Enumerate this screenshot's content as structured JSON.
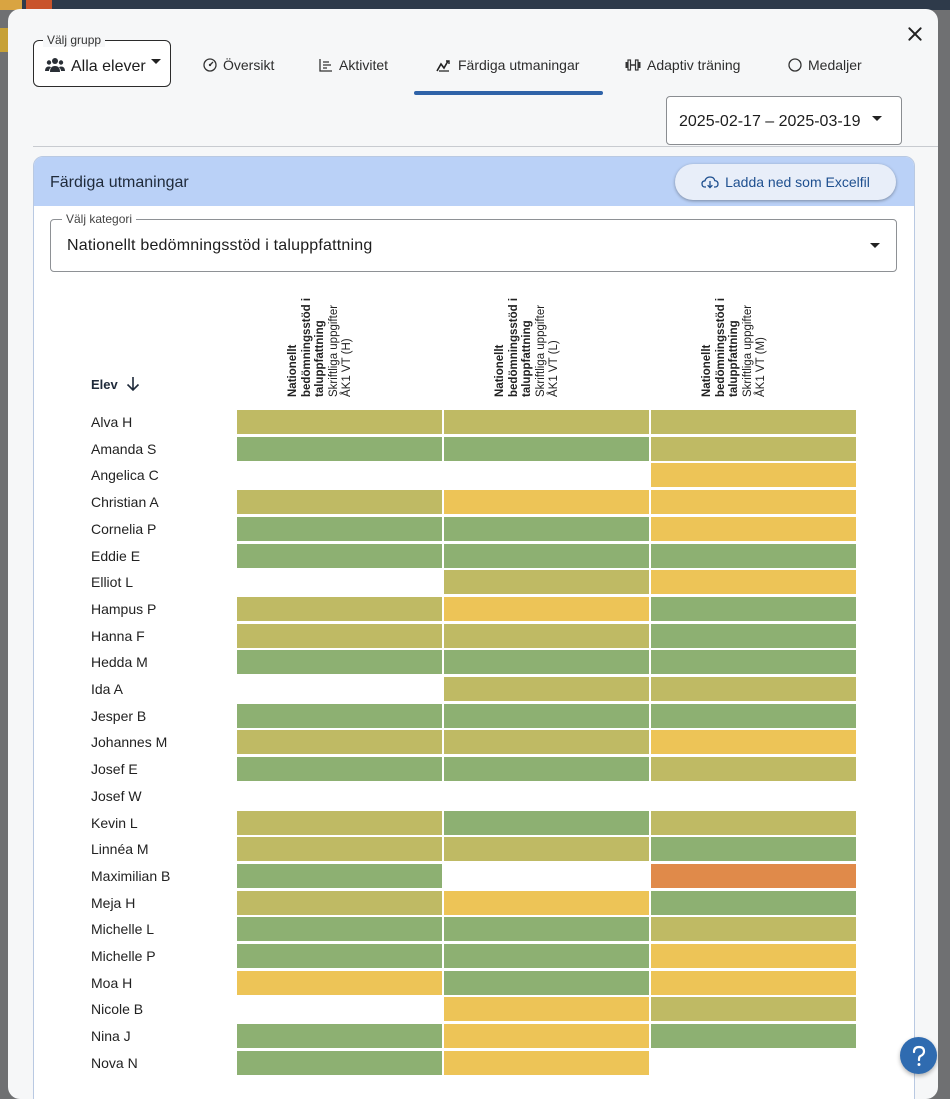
{
  "group_select": {
    "legend": "Välj grupp",
    "value": "Alla elever"
  },
  "tabs": [
    {
      "label": "Översikt",
      "icon": "gauge-icon"
    },
    {
      "label": "Aktivitet",
      "icon": "bar-chart-icon"
    },
    {
      "label": "Färdiga utmaningar",
      "icon": "trend-chart-icon",
      "active": true
    },
    {
      "label": "Adaptiv träning",
      "icon": "dumbbell-icon"
    },
    {
      "label": "Medaljer",
      "icon": "medal-icon"
    }
  ],
  "date_range": "2025-02-17 – 2025-03-19",
  "card": {
    "title": "Färdiga utmaningar",
    "download_label": "Ladda ned som Excelfil",
    "category": {
      "legend": "Välj kategori",
      "value": "Nationellt bedömningsstöd i taluppfattning"
    }
  },
  "columns": [
    {
      "bold": "Nationellt bedömningsstöd i taluppfattning",
      "sub": "Skriftliga uppgifter ÅK1 VT (H)"
    },
    {
      "bold": "Nationellt bedömningsstöd i taluppfattning",
      "sub": "Skriftliga uppgifter ÅK1 VT (L)"
    },
    {
      "bold": "Nationellt bedömningsstöd i taluppfattning",
      "sub": "Skriftliga uppgifter ÅK1 VT (M)"
    }
  ],
  "student_header": "Elev",
  "colors": {
    "green": "#8db072",
    "olive": "#bfba64",
    "yellow": "#edc457",
    "orange": "#e08a4a",
    "accent": "#2f63a8"
  },
  "rows": [
    {
      "name": "Alva H",
      "cells": [
        "olive",
        "olive",
        "olive"
      ]
    },
    {
      "name": "Amanda S",
      "cells": [
        "green",
        "green",
        "olive"
      ]
    },
    {
      "name": "Angelica C",
      "cells": [
        null,
        null,
        "yellow"
      ]
    },
    {
      "name": "Christian A",
      "cells": [
        "olive",
        "yellow",
        "yellow"
      ]
    },
    {
      "name": "Cornelia P",
      "cells": [
        "green",
        "green",
        "yellow"
      ]
    },
    {
      "name": "Eddie E",
      "cells": [
        "green",
        "green",
        "green"
      ]
    },
    {
      "name": "Elliot L",
      "cells": [
        null,
        "olive",
        "yellow"
      ]
    },
    {
      "name": "Hampus P",
      "cells": [
        "olive",
        "yellow",
        "green"
      ]
    },
    {
      "name": "Hanna F",
      "cells": [
        "olive",
        "olive",
        "green"
      ]
    },
    {
      "name": "Hedda M",
      "cells": [
        "green",
        "green",
        "green"
      ]
    },
    {
      "name": "Ida A",
      "cells": [
        null,
        "olive",
        "olive"
      ]
    },
    {
      "name": "Jesper B",
      "cells": [
        "green",
        "green",
        "green"
      ]
    },
    {
      "name": "Johannes M",
      "cells": [
        "olive",
        "olive",
        "yellow"
      ]
    },
    {
      "name": "Josef E",
      "cells": [
        "green",
        "green",
        "olive"
      ]
    },
    {
      "name": "Josef W",
      "cells": [
        null,
        null,
        null
      ]
    },
    {
      "name": "Kevin L",
      "cells": [
        "olive",
        "green",
        "olive"
      ]
    },
    {
      "name": "Linnéa M",
      "cells": [
        "olive",
        "olive",
        "green"
      ]
    },
    {
      "name": "Maximilian B",
      "cells": [
        "green",
        null,
        "orange"
      ]
    },
    {
      "name": "Meja H",
      "cells": [
        "olive",
        "yellow",
        "green"
      ]
    },
    {
      "name": "Michelle L",
      "cells": [
        "green",
        "green",
        "olive"
      ]
    },
    {
      "name": "Michelle P",
      "cells": [
        "green",
        "green",
        "yellow"
      ]
    },
    {
      "name": "Moa H",
      "cells": [
        "yellow",
        "green",
        "yellow"
      ]
    },
    {
      "name": "Nicole B",
      "cells": [
        null,
        "yellow",
        "olive"
      ]
    },
    {
      "name": "Nina J",
      "cells": [
        "green",
        "yellow",
        "green"
      ]
    },
    {
      "name": "Nova N",
      "cells": [
        "green",
        "yellow",
        null
      ]
    }
  ]
}
